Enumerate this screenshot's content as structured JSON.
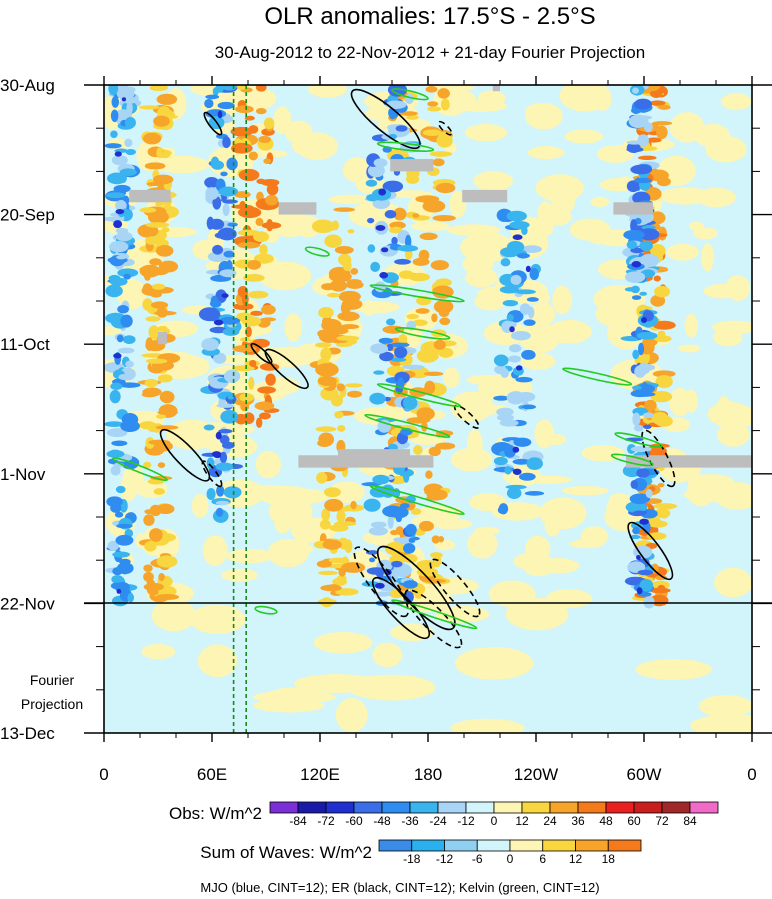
{
  "chart_data": {
    "type": "heatmap",
    "title": "OLR anomalies: 17.5°S - 2.5°S",
    "subtitle": "30-Aug-2012 to 22-Nov-2012 + 21-day Fourier Projection",
    "x_tick_labels": [
      "0",
      "60E",
      "120E",
      "180",
      "120W",
      "60W",
      "0"
    ],
    "x_tick_values_deg_east": [
      0,
      60,
      120,
      180,
      240,
      300,
      360
    ],
    "y_tick_labels": [
      "30-Aug",
      "20-Sep",
      "11-Oct",
      "1-Nov",
      "22-Nov",
      "13-Dec"
    ],
    "y_tick_values_days": [
      0,
      21,
      42,
      63,
      84,
      105
    ],
    "ylim_days": [
      0,
      105
    ],
    "xlim_deg_east": [
      0,
      360
    ],
    "projection_start_day": 84,
    "projection_label_line1": "Fourier",
    "projection_label_line2": "Projection",
    "reference_lines_deg_east": [
      72,
      79
    ],
    "obs_legend": {
      "title": "Obs: W/m^2",
      "levels": [
        -84,
        -72,
        -60,
        -48,
        -36,
        -24,
        -12,
        0,
        12,
        24,
        36,
        48,
        60,
        72,
        84
      ],
      "level_labels": [
        "-84",
        "-72",
        "-60",
        "-48",
        "-36",
        "-24",
        "-12",
        "0",
        "12",
        "24",
        "36",
        "48",
        "60",
        "72",
        "84"
      ],
      "colors": [
        "#7b2fd6",
        "#1a1aa8",
        "#1f2fd0",
        "#3a6ee8",
        "#2f8cf0",
        "#3ab4ee",
        "#a8d4f5",
        "#d2f4fb",
        "#fcf5b4",
        "#f8d640",
        "#f6a42a",
        "#f47a1c",
        "#ea2020",
        "#c81e1e",
        "#a02828",
        "#f06ac8"
      ]
    },
    "waves_legend": {
      "title": "Sum of Waves: W/m^2",
      "levels": [
        -18,
        -12,
        -6,
        0,
        6,
        12,
        18
      ],
      "level_labels": [
        "-18",
        "-12",
        "-6",
        "0",
        "6",
        "12",
        "18"
      ],
      "colors": [
        "#3a8ce8",
        "#2ab0ee",
        "#8fd0f2",
        "#d2f4fb",
        "#fcf5b4",
        "#f8d640",
        "#f6a42a",
        "#f47a1c"
      ]
    },
    "contour_legend": "MJO (blue, CINT=12); ER (black, CINT=12); Kelvin (green, CINT=12)",
    "kelvin_contours": [
      {
        "lon": [
          5,
          35
        ],
        "day": [
          60.5,
          64.0
        ]
      },
      {
        "lon": [
          152,
          183
        ],
        "day": [
          9.5,
          10.5
        ]
      },
      {
        "lon": [
          160,
          180
        ],
        "day": [
          0.8,
          2.2
        ]
      },
      {
        "lon": [
          112,
          125
        ],
        "day": [
          26.5,
          27.5
        ]
      },
      {
        "lon": [
          148,
          200
        ],
        "day": [
          32.5,
          35.0
        ]
      },
      {
        "lon": [
          162,
          192
        ],
        "day": [
          39.5,
          41.0
        ]
      },
      {
        "lon": [
          152,
          198
        ],
        "day": [
          48.5,
          52.0
        ]
      },
      {
        "lon": [
          145,
          192
        ],
        "day": [
          53.5,
          57.0
        ]
      },
      {
        "lon": [
          148,
          200
        ],
        "day": [
          65.0,
          69.5
        ]
      },
      {
        "lon": [
          160,
          207
        ],
        "day": [
          83.5,
          88.0
        ]
      },
      {
        "lon": [
          255,
          293
        ],
        "day": [
          46.0,
          48.5
        ]
      },
      {
        "lon": [
          284,
          310
        ],
        "day": [
          56.5,
          58.5
        ]
      },
      {
        "lon": [
          282,
          305
        ],
        "day": [
          60.0,
          61.5
        ]
      },
      {
        "lon": [
          84,
          96
        ],
        "day": [
          84.8,
          85.4
        ]
      }
    ],
    "er_contours": [
      {
        "lon": [
          138,
          175
        ],
        "day": [
          1.0,
          10.0
        ],
        "dashed": false
      },
      {
        "lon": [
          32,
          58
        ],
        "day": [
          56.0,
          64.0
        ],
        "dashed": false
      },
      {
        "lon": [
          90,
          113
        ],
        "day": [
          43.0,
          49.0
        ],
        "dashed": false
      },
      {
        "lon": [
          56,
          65
        ],
        "day": [
          4.5,
          8.0
        ],
        "dashed": false
      },
      {
        "lon": [
          82,
          93
        ],
        "day": [
          42.0,
          45.0
        ],
        "dashed": false
      },
      {
        "lon": [
          140,
          168
        ],
        "day": [
          75.0,
          86.0
        ],
        "dashed": true
      },
      {
        "lon": [
          153,
          194
        ],
        "day": [
          75.0,
          88.0
        ],
        "dashed": false
      },
      {
        "lon": [
          150,
          180
        ],
        "day": [
          80.0,
          89.5
        ],
        "dashed": false
      },
      {
        "lon": [
          168,
          198
        ],
        "day": [
          82.0,
          91.0
        ],
        "dashed": true
      },
      {
        "lon": [
          182,
          208
        ],
        "day": [
          77.0,
          86.0
        ],
        "dashed": true
      },
      {
        "lon": [
          300,
          316
        ],
        "day": [
          56.0,
          65.0
        ],
        "dashed": true
      },
      {
        "lon": [
          292,
          315
        ],
        "day": [
          71.0,
          80.0
        ],
        "dashed": false
      },
      {
        "lon": [
          195,
          208
        ],
        "day": [
          52.0,
          55.5
        ],
        "dashed": true
      },
      {
        "lon": [
          186,
          193
        ],
        "day": [
          6.0,
          8.0
        ],
        "dashed": true
      },
      {
        "lon": [
          55,
          65
        ],
        "day": [
          61.0,
          65.0
        ],
        "dashed": true
      }
    ],
    "missing_data_boxes": [
      {
        "lon": [
          14,
          37
        ],
        "day": [
          17.0,
          19.0
        ]
      },
      {
        "lon": [
          97,
          118
        ],
        "day": [
          19.0,
          21.0
        ]
      },
      {
        "lon": [
          159,
          183
        ],
        "day": [
          12.0,
          14.0
        ]
      },
      {
        "lon": [
          199,
          224
        ],
        "day": [
          17.0,
          19.0
        ]
      },
      {
        "lon": [
          283,
          305
        ],
        "day": [
          19.0,
          21.0
        ]
      },
      {
        "lon": [
          216,
          220
        ],
        "day": [
          0.0,
          1.0
        ]
      },
      {
        "lon": [
          108,
          183
        ],
        "day": [
          60.0,
          62.0
        ]
      },
      {
        "lon": [
          130,
          170
        ],
        "day": [
          59.0,
          61.0
        ]
      },
      {
        "lon": [
          290,
          360
        ],
        "day": [
          60.0,
          62.0
        ]
      },
      {
        "lon": [
          30,
          35
        ],
        "day": [
          40.0,
          42.0
        ]
      }
    ],
    "positive_anomaly_bands": [
      {
        "lon": 85,
        "width": 18,
        "day": [
          0,
          55
        ],
        "level": 2
      },
      {
        "lon": 305,
        "width": 14,
        "day": [
          0,
          84
        ],
        "level": 2
      },
      {
        "lon": 175,
        "width": 30,
        "day": [
          0,
          84
        ],
        "level": 1
      },
      {
        "lon": 130,
        "width": 20,
        "day": [
          20,
          84
        ],
        "level": 1
      },
      {
        "lon": 30,
        "width": 12,
        "day": [
          0,
          84
        ],
        "level": 1
      }
    ],
    "negative_anomaly_bands": [
      {
        "lon": 65,
        "width": 14,
        "day": [
          0,
          70
        ],
        "level": 2
      },
      {
        "lon": 160,
        "width": 24,
        "day": [
          0,
          84
        ],
        "level": 2
      },
      {
        "lon": 298,
        "width": 10,
        "day": [
          0,
          84
        ],
        "level": 2
      },
      {
        "lon": 10,
        "width": 10,
        "day": [
          0,
          84
        ],
        "level": 1
      },
      {
        "lon": 230,
        "width": 20,
        "day": [
          20,
          70
        ],
        "level": 1
      }
    ]
  }
}
